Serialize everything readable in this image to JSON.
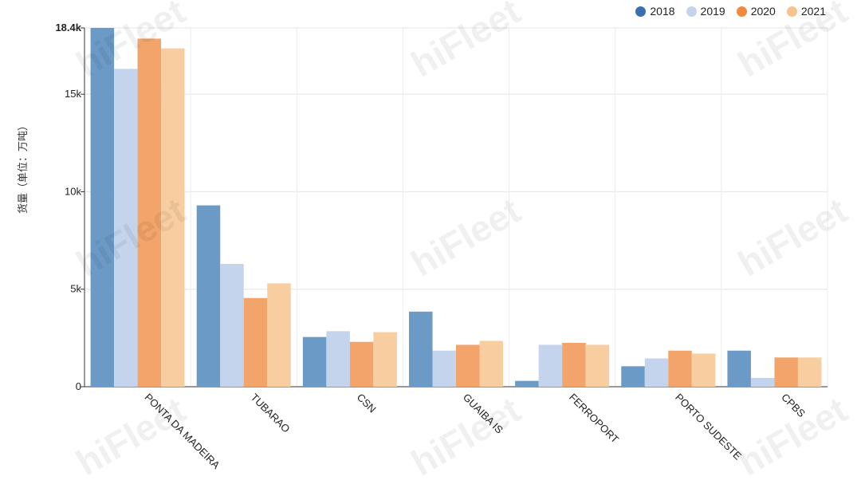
{
  "chart_data": {
    "type": "bar",
    "categories": [
      "PONTA DA MADEIRA",
      "TUBARAO",
      "CSN",
      "GUAIBA IS",
      "FERROPORT",
      "PORTO SUDESTE",
      "CPBS"
    ],
    "series": [
      {
        "name": "2018",
        "color": "#6b9ac6",
        "legend_color": "#3a6fb0",
        "values": [
          18400,
          9300,
          2550,
          3850,
          300,
          1050,
          1850
        ]
      },
      {
        "name": "2019",
        "color": "#c4d4ec",
        "legend_color": "#c4d4ec",
        "values": [
          16300,
          6300,
          2850,
          1850,
          2150,
          1450,
          450
        ]
      },
      {
        "name": "2020",
        "color": "#f2a46a",
        "legend_color": "#ef8a43",
        "values": [
          17850,
          4550,
          2300,
          2150,
          2250,
          1850,
          1500
        ]
      },
      {
        "name": "2021",
        "color": "#f8ceA0",
        "legend_color": "#f6c38f",
        "values": [
          17350,
          5300,
          2800,
          2350,
          2150,
          1700,
          1500
        ]
      }
    ],
    "ylabel": "货量（单位：万吨）",
    "ylim": [
      0,
      18400
    ],
    "yticks": [
      {
        "value": 0,
        "label": "0"
      },
      {
        "value": 5000,
        "label": "5k"
      },
      {
        "value": 10000,
        "label": "10k"
      },
      {
        "value": 15000,
        "label": "15k"
      },
      {
        "value": 18400,
        "label": "18.4k"
      }
    ],
    "grid": true,
    "legend": "top-right"
  },
  "watermark": "hiFleet"
}
